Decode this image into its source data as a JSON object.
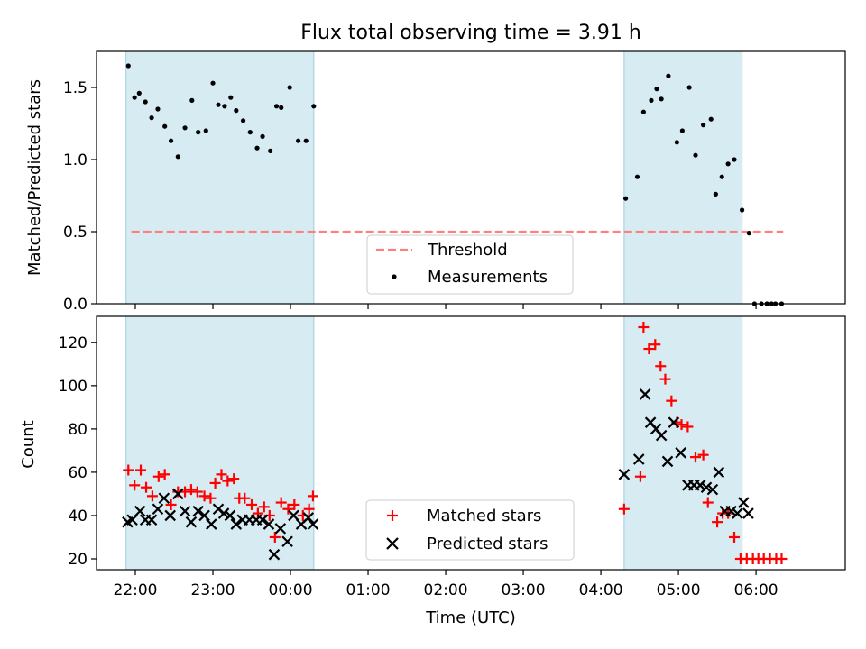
{
  "chart_data": [
    {
      "type": "scatter",
      "title": "Flux total observing time = 3.91 h",
      "xlabel": "",
      "ylabel": "Matched/Predicted stars",
      "ylim": [
        0,
        1.75
      ],
      "yticks": [
        "0.0",
        "0.5",
        "1.0",
        "1.5"
      ],
      "yticks_values": [
        0,
        0.5,
        1.0,
        1.5
      ],
      "legend_position": "lower-center",
      "threshold": {
        "name": "Threshold",
        "value": 0.5,
        "x_range": [
          21.95,
          30.35
        ],
        "color": "#ff7f7f"
      },
      "shaded_intervals": [
        [
          21.88,
          24.3
        ],
        [
          28.3,
          29.82
        ]
      ],
      "series": [
        {
          "name": "Measurements",
          "marker": "dot",
          "color": "#000000",
          "x": [
            21.91,
            21.99,
            22.05,
            22.13,
            22.21,
            22.29,
            22.38,
            22.46,
            22.55,
            22.64,
            22.73,
            22.81,
            22.91,
            23.0,
            23.07,
            23.15,
            23.23,
            23.3,
            23.39,
            23.48,
            23.57,
            23.64,
            23.74,
            23.82,
            23.88,
            23.99,
            24.1,
            24.2,
            24.3,
            28.32,
            28.47,
            28.55,
            28.65,
            28.72,
            28.78,
            28.87,
            28.98,
            29.05,
            29.14,
            29.22,
            29.32,
            29.42,
            29.48,
            29.56,
            29.64,
            29.72,
            29.82,
            29.91,
            29.98,
            30.07,
            30.14,
            30.2,
            30.25,
            30.33
          ],
          "y": [
            1.65,
            1.43,
            1.46,
            1.4,
            1.29,
            1.35,
            1.23,
            1.13,
            1.02,
            1.22,
            1.41,
            1.19,
            1.2,
            1.53,
            1.38,
            1.37,
            1.43,
            1.34,
            1.27,
            1.19,
            1.08,
            1.16,
            1.06,
            1.37,
            1.36,
            1.5,
            1.13,
            1.13,
            1.37,
            0.73,
            0.88,
            1.33,
            1.41,
            1.49,
            1.42,
            1.58,
            1.12,
            1.2,
            1.5,
            1.03,
            1.24,
            1.28,
            0.76,
            0.88,
            0.97,
            1.0,
            0.65,
            0.49,
            0.0,
            0.0,
            0.0,
            0.0,
            0.0,
            0.0
          ]
        }
      ]
    },
    {
      "type": "scatter",
      "title": "",
      "xlabel": "Time (UTC)",
      "ylabel": "Count",
      "ylim": [
        15,
        132
      ],
      "yticks": [
        "20",
        "40",
        "60",
        "80",
        "100",
        "120"
      ],
      "yticks_values": [
        20,
        40,
        60,
        80,
        100,
        120
      ],
      "xlim": [
        21.5,
        31.15
      ],
      "xticks": [
        "22:00",
        "23:00",
        "00:00",
        "01:00",
        "02:00",
        "03:00",
        "04:00",
        "05:00",
        "06:00"
      ],
      "xticks_values": [
        22,
        23,
        24,
        25,
        26,
        27,
        28,
        29,
        30
      ],
      "legend_position": "lower-center",
      "shaded_intervals": [
        [
          21.88,
          24.3
        ],
        [
          28.3,
          29.82
        ]
      ],
      "series": [
        {
          "name": "Matched stars",
          "marker": "plus",
          "color": "#ff0000",
          "x": [
            21.91,
            21.99,
            22.07,
            22.14,
            22.22,
            22.3,
            22.38,
            22.46,
            22.55,
            22.64,
            22.72,
            22.8,
            22.89,
            22.97,
            23.03,
            23.11,
            23.19,
            23.27,
            23.34,
            23.41,
            23.5,
            23.58,
            23.66,
            23.73,
            23.8,
            23.88,
            23.97,
            24.05,
            24.16,
            24.24,
            24.29,
            28.3,
            28.51,
            28.55,
            28.62,
            28.7,
            28.77,
            28.83,
            28.91,
            28.98,
            29.04,
            29.12,
            29.22,
            29.32,
            29.38,
            29.5,
            29.57,
            29.64,
            29.72,
            29.8,
            29.88,
            29.96,
            30.03,
            30.1,
            30.18,
            30.26,
            30.33
          ],
          "y": [
            61,
            54,
            61,
            53,
            49,
            58,
            59,
            45,
            51,
            51,
            52,
            51,
            49,
            48,
            55,
            59,
            56,
            57,
            48,
            48,
            45,
            41,
            44,
            40,
            30,
            46,
            43,
            45,
            40,
            43,
            49,
            43,
            58,
            127,
            117,
            119,
            109,
            103,
            93,
            83,
            82,
            81,
            67,
            68,
            46,
            37,
            41,
            41,
            30,
            20,
            20,
            20,
            20,
            20,
            20,
            20,
            20
          ]
        },
        {
          "name": "Predicted stars",
          "marker": "x",
          "color": "#000000",
          "x": [
            21.9,
            21.96,
            22.06,
            22.13,
            22.21,
            22.29,
            22.37,
            22.45,
            22.55,
            22.64,
            22.72,
            22.81,
            22.89,
            22.98,
            23.07,
            23.14,
            23.22,
            23.3,
            23.38,
            23.47,
            23.56,
            23.64,
            23.72,
            23.79,
            23.87,
            23.96,
            24.04,
            24.14,
            24.23,
            24.29,
            28.3,
            28.49,
            28.57,
            28.64,
            28.71,
            28.78,
            28.86,
            28.94,
            29.03,
            29.12,
            29.2,
            29.28,
            29.36,
            29.44,
            29.52,
            29.6,
            29.68,
            29.76,
            29.84,
            29.9
          ],
          "y": [
            37,
            38,
            42,
            38,
            38,
            43,
            48,
            40,
            50,
            42,
            37,
            42,
            40,
            36,
            43,
            41,
            40,
            36,
            38,
            38,
            38,
            38,
            36,
            22,
            34,
            28,
            40,
            36,
            39,
            36,
            59,
            66,
            96,
            83,
            80,
            77,
            65,
            83,
            69,
            54,
            54,
            54,
            53,
            52,
            60,
            42,
            42,
            41,
            46,
            41
          ]
        }
      ]
    }
  ]
}
